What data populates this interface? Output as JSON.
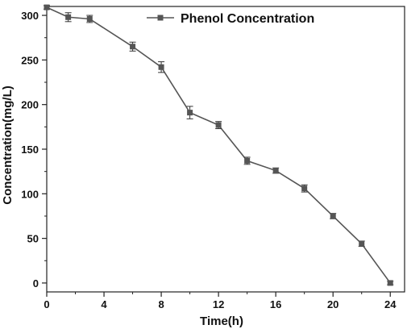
{
  "chart_data": {
    "type": "line",
    "title": "",
    "xlabel": "Time(h)",
    "ylabel": "Concentration(mg/L)",
    "xlim": [
      0,
      25
    ],
    "ylim": [
      -10,
      310
    ],
    "xticks": [
      0,
      4,
      8,
      12,
      16,
      20,
      24
    ],
    "yticks": [
      0,
      50,
      100,
      150,
      200,
      250,
      300
    ],
    "grid": false,
    "legend_position": "top",
    "series": [
      {
        "name": "Phenol Concentration",
        "color": "#555555",
        "marker": "square",
        "x": [
          0,
          1.5,
          3,
          6,
          8,
          10,
          12,
          14,
          16,
          18,
          20,
          22,
          24
        ],
        "y": [
          309,
          298,
          296,
          265,
          242,
          191,
          177,
          137,
          126,
          106,
          75,
          44,
          0
        ],
        "error": [
          2,
          5,
          4,
          5,
          6,
          7,
          4,
          4,
          3,
          4,
          3,
          3,
          2
        ]
      }
    ]
  }
}
